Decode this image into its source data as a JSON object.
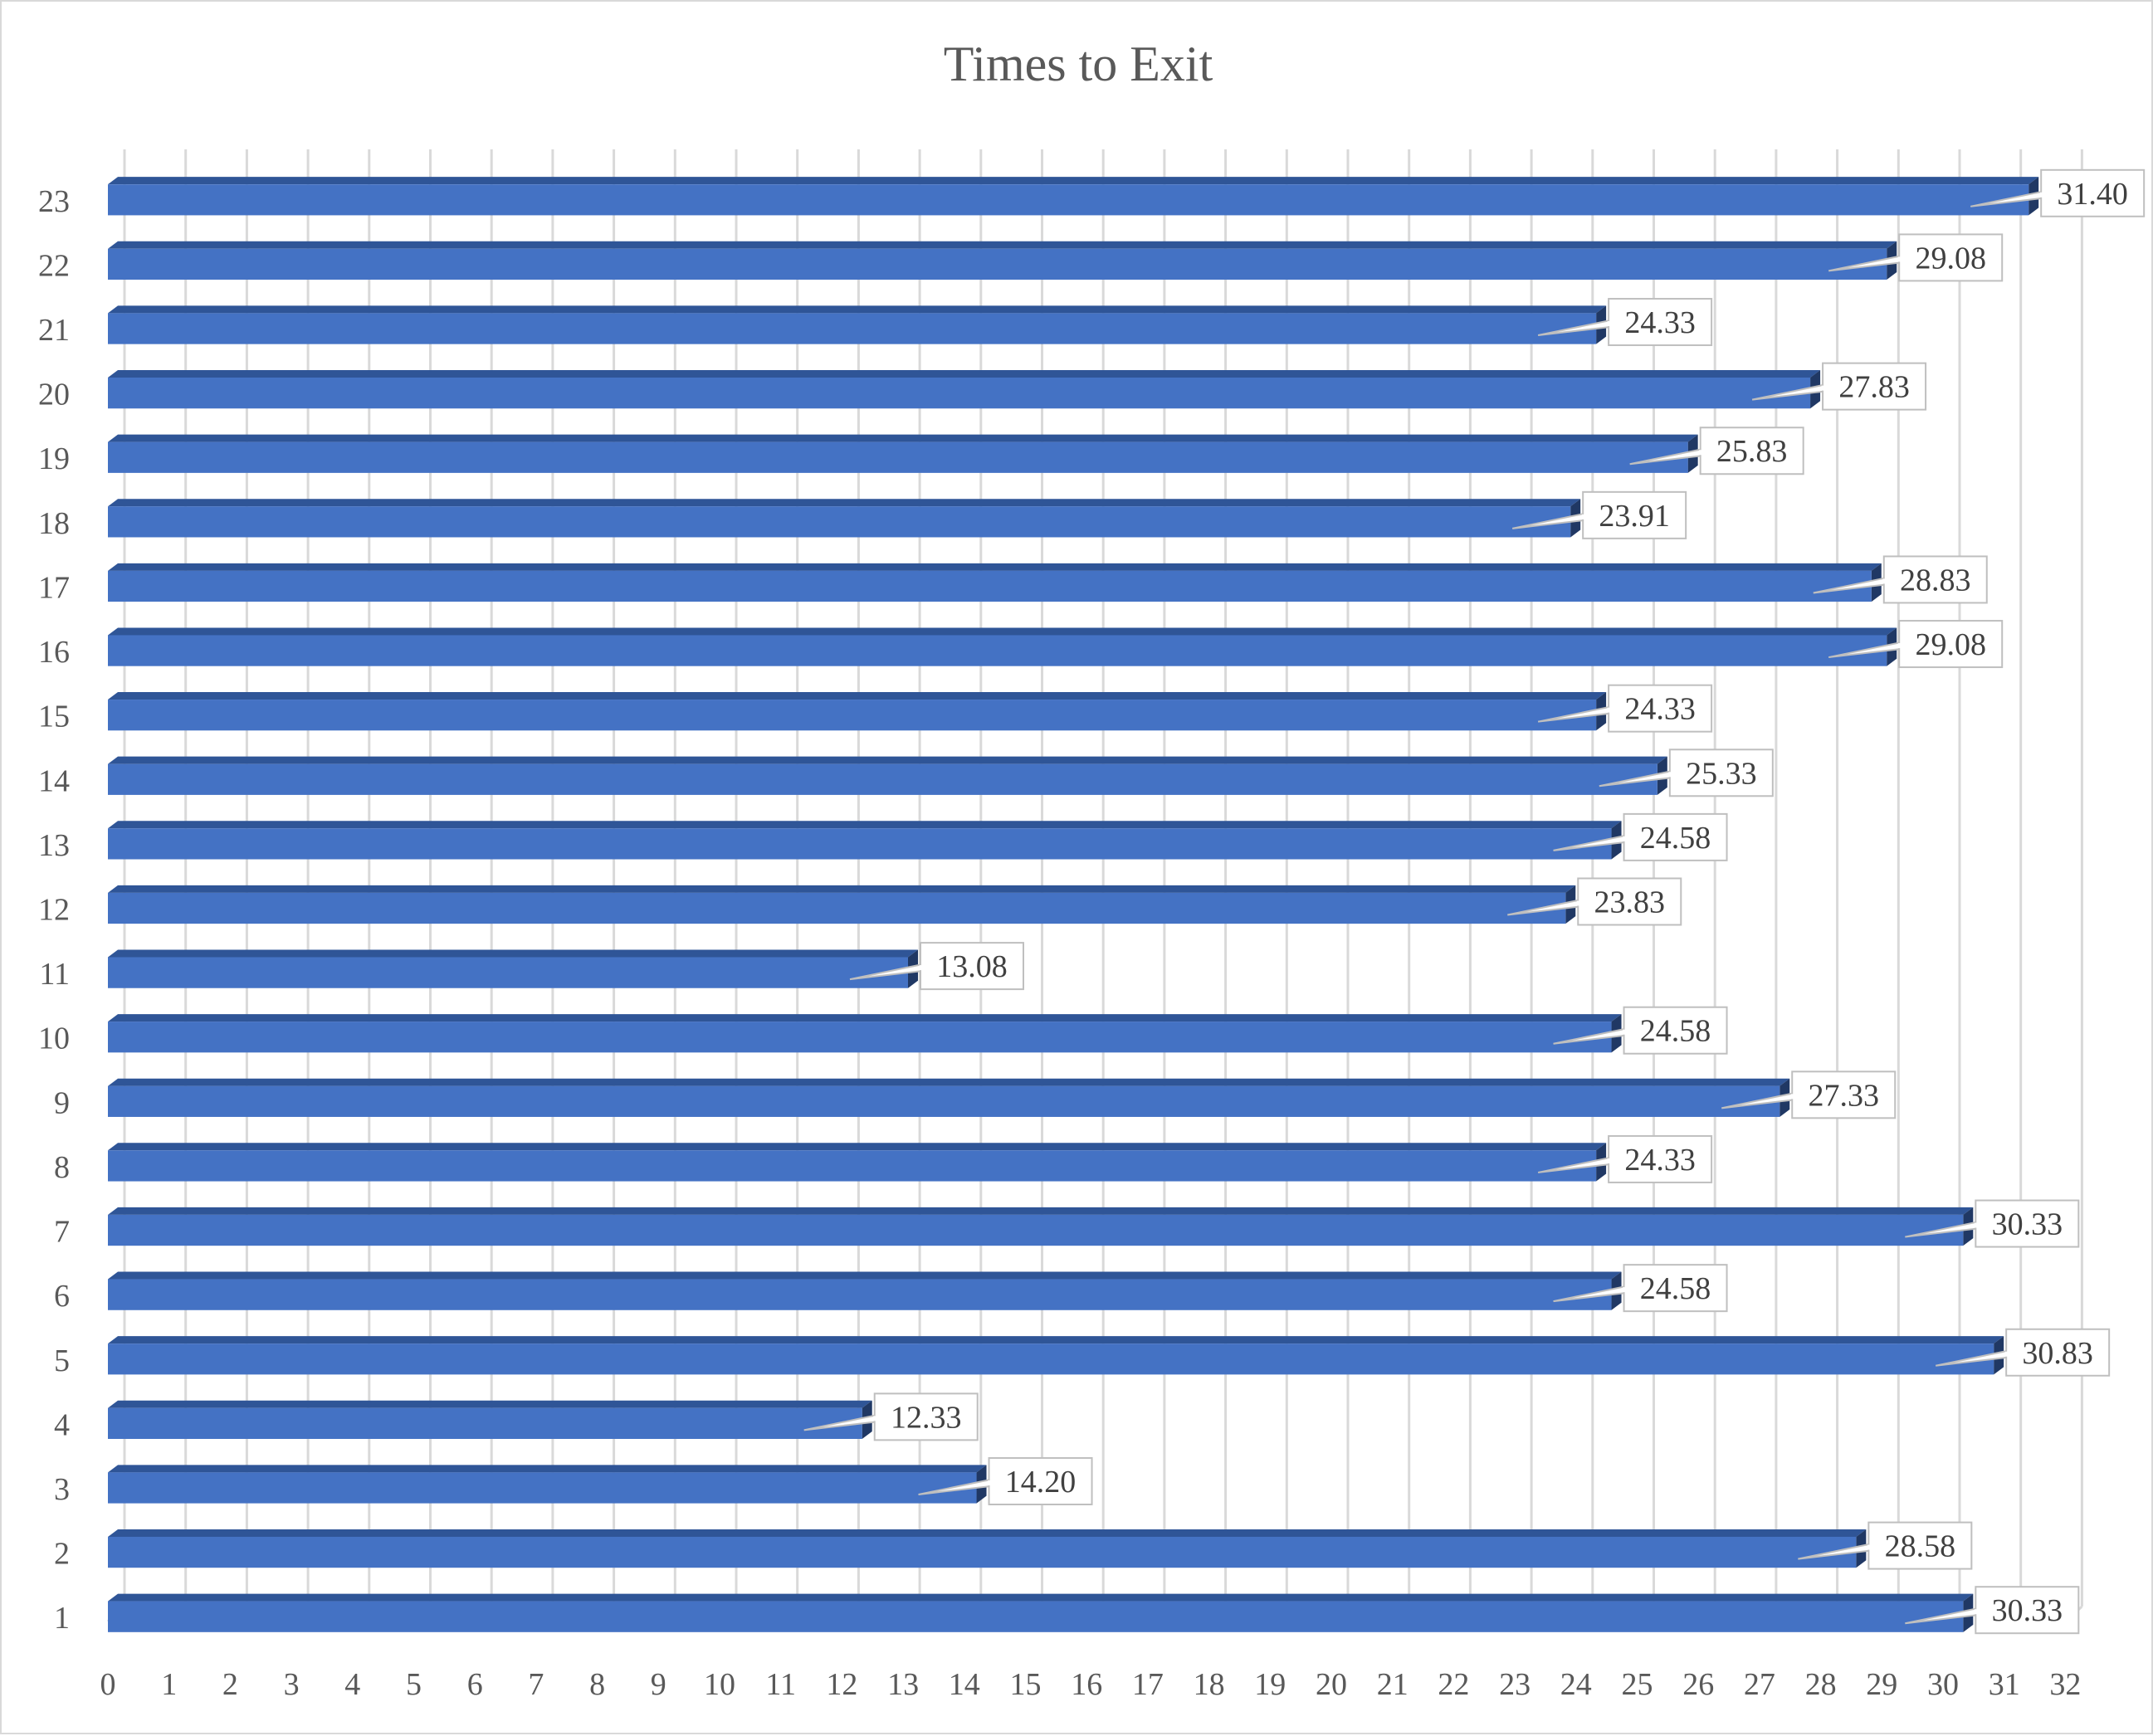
{
  "chart_data": {
    "type": "bar",
    "orientation": "horizontal",
    "title": "Times to Exit",
    "xlabel": "",
    "ylabel": "",
    "categories": [
      "1",
      "2",
      "3",
      "4",
      "5",
      "6",
      "7",
      "8",
      "9",
      "10",
      "11",
      "12",
      "13",
      "14",
      "15",
      "16",
      "17",
      "18",
      "19",
      "20",
      "21",
      "22",
      "23"
    ],
    "values": [
      30.33,
      28.58,
      14.2,
      12.33,
      30.83,
      24.58,
      30.33,
      24.33,
      27.33,
      24.58,
      13.08,
      23.83,
      24.58,
      25.33,
      24.33,
      29.08,
      28.83,
      23.91,
      25.83,
      27.83,
      24.33,
      29.08,
      31.4
    ],
    "data_labels": [
      "30.33",
      "28.58",
      "14.20",
      "12.33",
      "30.83",
      "24.58",
      "30.33",
      "24.33",
      "27.33",
      "24.58",
      "13.08",
      "23.83",
      "24.58",
      "25.33",
      "24.33",
      "29.08",
      "28.83",
      "23.91",
      "25.83",
      "27.83",
      "24.33",
      "29.08",
      "31.40"
    ],
    "xlim": [
      0,
      32
    ],
    "x_ticks": [
      "0",
      "1",
      "2",
      "3",
      "4",
      "5",
      "6",
      "7",
      "8",
      "9",
      "10",
      "11",
      "12",
      "13",
      "14",
      "15",
      "16",
      "17",
      "18",
      "19",
      "20",
      "21",
      "22",
      "23",
      "24",
      "25",
      "26",
      "27",
      "28",
      "29",
      "30",
      "31",
      "32"
    ],
    "grid": true,
    "legend": "none",
    "colors": {
      "bar": "#4472c4",
      "bar_top": "#2f5597",
      "grid": "#d9d9d9",
      "text": "#595959"
    }
  }
}
